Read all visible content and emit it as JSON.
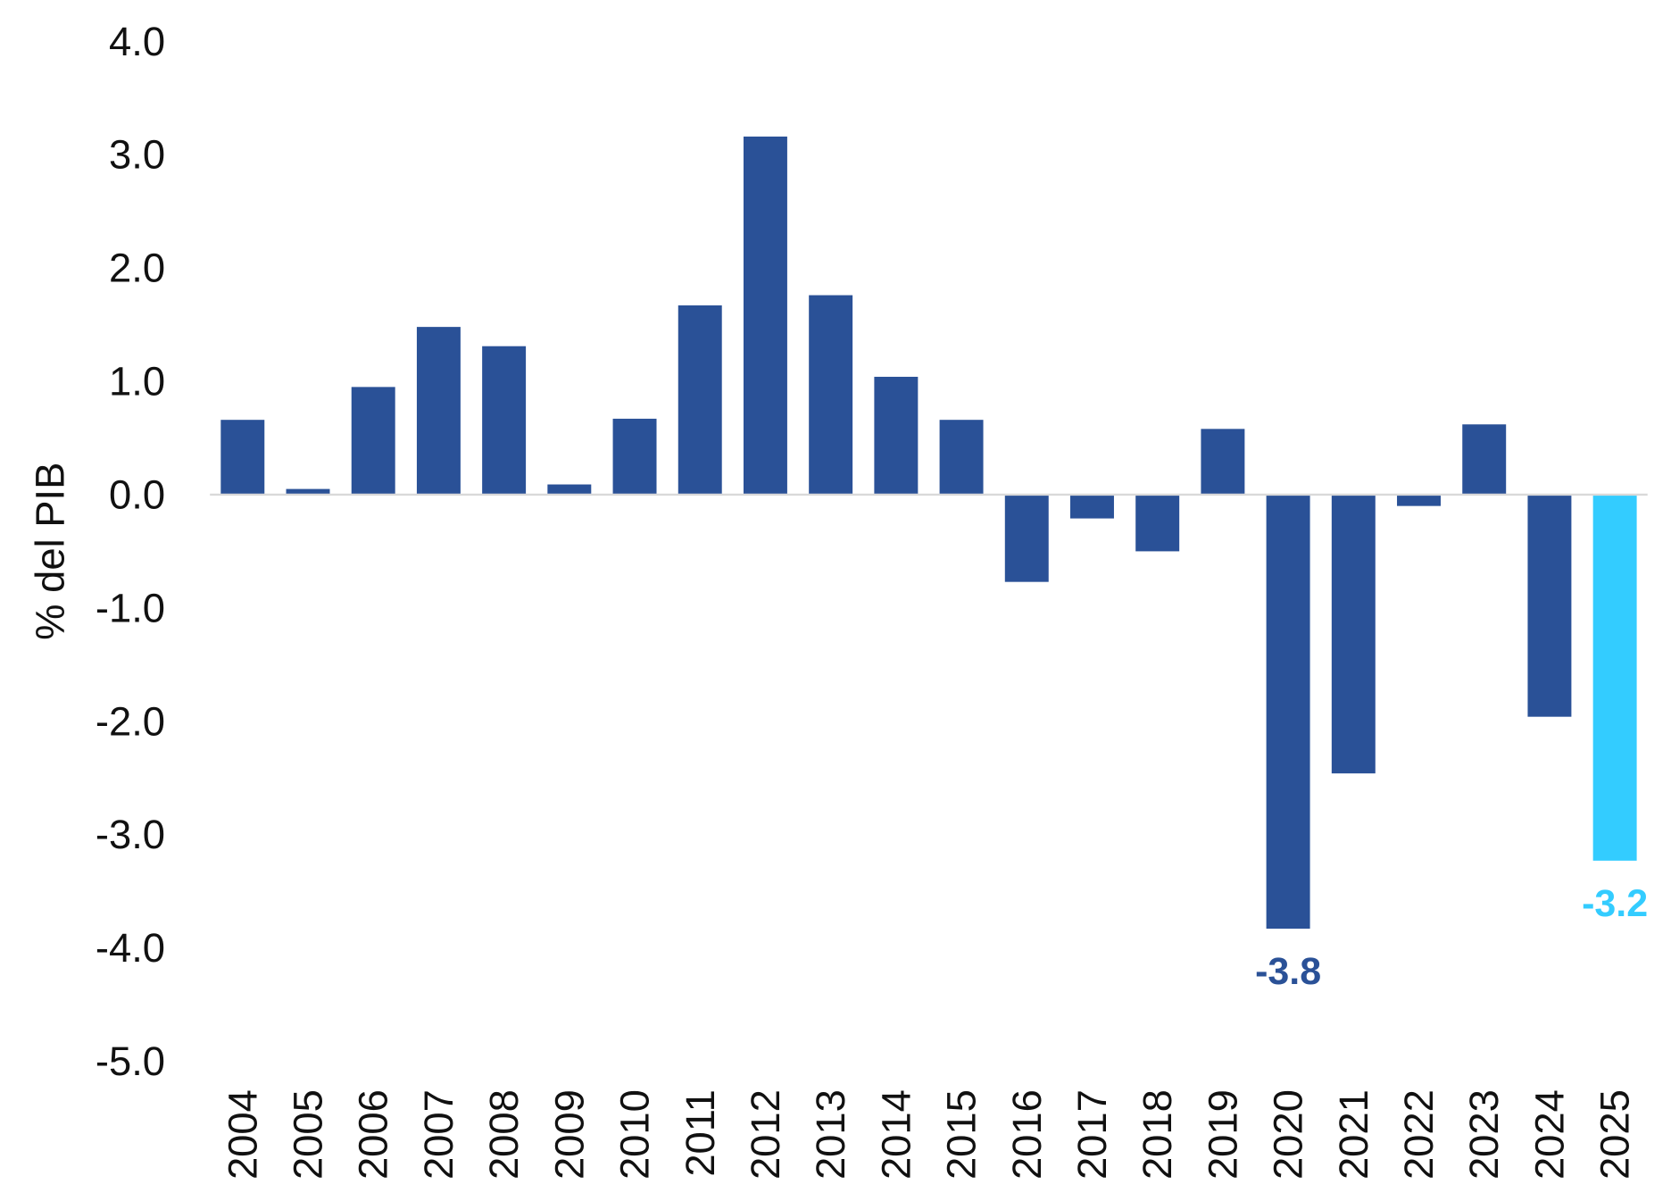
{
  "chart_data": {
    "type": "bar",
    "y_label": "% del PIB",
    "categories": [
      "2004",
      "2005",
      "2006",
      "2007",
      "2008",
      "2009",
      "2010",
      "2011",
      "2012",
      "2013",
      "2014",
      "2015",
      "2016",
      "2017",
      "2018",
      "2019",
      "2020",
      "2021",
      "2022",
      "2023",
      "2024",
      "2025"
    ],
    "values": [
      0.66,
      0.05,
      0.95,
      1.48,
      1.31,
      0.09,
      0.67,
      1.67,
      3.16,
      1.76,
      1.04,
      0.66,
      -0.77,
      -0.21,
      -0.5,
      0.58,
      -3.83,
      -2.46,
      -0.1,
      0.62,
      -1.96,
      -3.23
    ],
    "value_labels": [
      null,
      null,
      null,
      null,
      null,
      null,
      null,
      null,
      null,
      null,
      null,
      null,
      null,
      null,
      null,
      null,
      "-3.8",
      null,
      null,
      null,
      null,
      "-3.2"
    ],
    "colors": [
      "#2a5197",
      "#2a5197",
      "#2a5197",
      "#2a5197",
      "#2a5197",
      "#2a5197",
      "#2a5197",
      "#2a5197",
      "#2a5197",
      "#2a5197",
      "#2a5197",
      "#2a5197",
      "#2a5197",
      "#2a5197",
      "#2a5197",
      "#2a5197",
      "#2a5197",
      "#2a5197",
      "#2a5197",
      "#2a5197",
      "#2a5197",
      "#33ccff"
    ],
    "ylim": [
      -5,
      4
    ],
    "yticks": [
      {
        "value": 4,
        "label": "4.0"
      },
      {
        "value": 3,
        "label": "3.0"
      },
      {
        "value": 2,
        "label": "2.0"
      },
      {
        "value": 1,
        "label": "1.0"
      },
      {
        "value": 0,
        "label": "0.0"
      },
      {
        "value": -1,
        "label": "-1.0"
      },
      {
        "value": -2,
        "label": "-2.0"
      },
      {
        "value": -3,
        "label": "-3.0"
      },
      {
        "value": -4,
        "label": "-4.0"
      },
      {
        "value": -5,
        "label": "-5.0"
      }
    ],
    "grid": false
  }
}
